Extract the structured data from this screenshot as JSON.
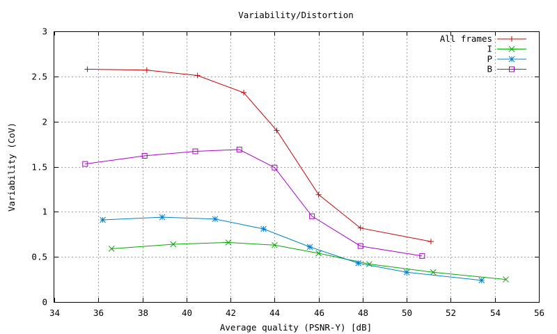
{
  "chart_data": {
    "type": "line",
    "title": "Variability/Distortion",
    "xlabel": "Average quality (PSNR-Y) [dB]",
    "ylabel": "Variability (CoV)",
    "xlim": [
      34,
      56
    ],
    "ylim": [
      0,
      3
    ],
    "xticks": [
      34,
      36,
      38,
      40,
      42,
      44,
      46,
      48,
      50,
      52,
      54,
      56
    ],
    "yticks": [
      0,
      0.5,
      1,
      1.5,
      2,
      2.5,
      3
    ],
    "xtick_labels": [
      "34",
      "36",
      "38",
      "40",
      "42",
      "44",
      "46",
      "48",
      "50",
      "52",
      "54",
      "56"
    ],
    "ytick_labels": [
      "0",
      "0.5",
      "1",
      "1.5",
      "2",
      "2.5",
      "3"
    ],
    "grid": true,
    "legend_position": "top-right",
    "series": [
      {
        "name": "All frames",
        "color": "#cc0000",
        "marker": "plus",
        "x": [
          35.5,
          38.2,
          40.5,
          42.6,
          44.1,
          46.0,
          47.9,
          51.1
        ],
        "y": [
          2.58,
          2.57,
          2.51,
          2.32,
          1.9,
          1.19,
          0.82,
          0.67
        ]
      },
      {
        "name": "I",
        "color": "#00aa00",
        "marker": "cross",
        "x": [
          36.6,
          39.4,
          41.9,
          44.0,
          46.0,
          48.3,
          51.2,
          54.5
        ],
        "y": [
          0.59,
          0.64,
          0.66,
          0.63,
          0.54,
          0.42,
          0.33,
          0.25
        ]
      },
      {
        "name": "P",
        "color": "#0080cc",
        "marker": "star",
        "x": [
          36.2,
          38.9,
          41.3,
          43.5,
          45.6,
          47.8,
          50.0,
          53.4
        ],
        "y": [
          0.91,
          0.94,
          0.92,
          0.81,
          0.61,
          0.43,
          0.33,
          0.24
        ]
      },
      {
        "name": "B",
        "color": "#aa00cc",
        "marker": "square",
        "x": [
          35.4,
          38.1,
          40.4,
          42.4,
          44.0,
          45.7,
          47.9,
          50.7
        ],
        "y": [
          1.53,
          1.62,
          1.67,
          1.69,
          1.49,
          0.95,
          0.62,
          0.51
        ]
      }
    ]
  }
}
